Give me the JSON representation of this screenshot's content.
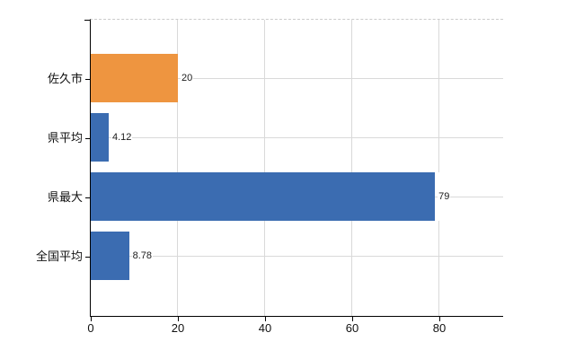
{
  "chart_data": {
    "type": "bar",
    "orientation": "horizontal",
    "title": "",
    "categories": [
      "佐久市",
      "県平均",
      "県最大",
      "全国平均"
    ],
    "values": [
      20,
      4.12,
      79,
      8.78
    ],
    "value_labels": [
      "20",
      "4.12",
      "79",
      "8.78"
    ],
    "bar_colors": [
      "#ee9540",
      "#3b6cb1",
      "#3b6cb1",
      "#3b6cb1"
    ],
    "x_tick_values": [
      0,
      20,
      40,
      60,
      80
    ],
    "x_tick_labels": [
      "0",
      "20",
      "40",
      "60",
      "80"
    ],
    "xlim": [
      0,
      95
    ],
    "grid": true,
    "legend": false
  },
  "colors": {
    "bar_blue": "#3b6cb1",
    "bar_orange": "#ee9540",
    "gridline": "#d9d9d9",
    "plot_top_dashed_border": "#cccccc",
    "axis": "#000000",
    "text": "#111111",
    "background": "#ffffff"
  }
}
